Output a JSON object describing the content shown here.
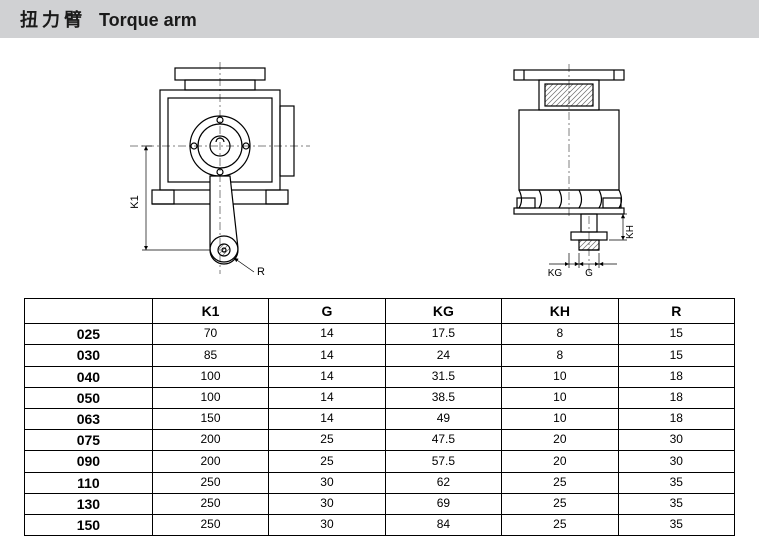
{
  "header": {
    "title_cn": "扭力臂",
    "title_en": "Torque arm"
  },
  "diagram_labels": {
    "left": {
      "K1": "K1",
      "R": "R"
    },
    "right": {
      "KH": "KH",
      "KG": "KG",
      "G": "G"
    }
  },
  "table": {
    "columns": [
      "",
      "K1",
      "G",
      "KG",
      "KH",
      "R"
    ],
    "rows": [
      [
        "025",
        "70",
        "14",
        "17.5",
        "8",
        "15"
      ],
      [
        "030",
        "85",
        "14",
        "24",
        "8",
        "15"
      ],
      [
        "040",
        "100",
        "14",
        "31.5",
        "10",
        "18"
      ],
      [
        "050",
        "100",
        "14",
        "38.5",
        "10",
        "18"
      ],
      [
        "063",
        "150",
        "14",
        "49",
        "10",
        "18"
      ],
      [
        "075",
        "200",
        "25",
        "47.5",
        "20",
        "30"
      ],
      [
        "090",
        "200",
        "25",
        "57.5",
        "20",
        "30"
      ],
      [
        "110",
        "250",
        "30",
        "62",
        "25",
        "35"
      ],
      [
        "130",
        "250",
        "30",
        "69",
        "25",
        "35"
      ],
      [
        "150",
        "250",
        "30",
        "84",
        "25",
        "35"
      ]
    ]
  },
  "style": {
    "header_bg": "#d0d1d3",
    "line_color": "#000000",
    "hatch_color": "#6b6b6b",
    "text_color": "#1a1a1a"
  }
}
